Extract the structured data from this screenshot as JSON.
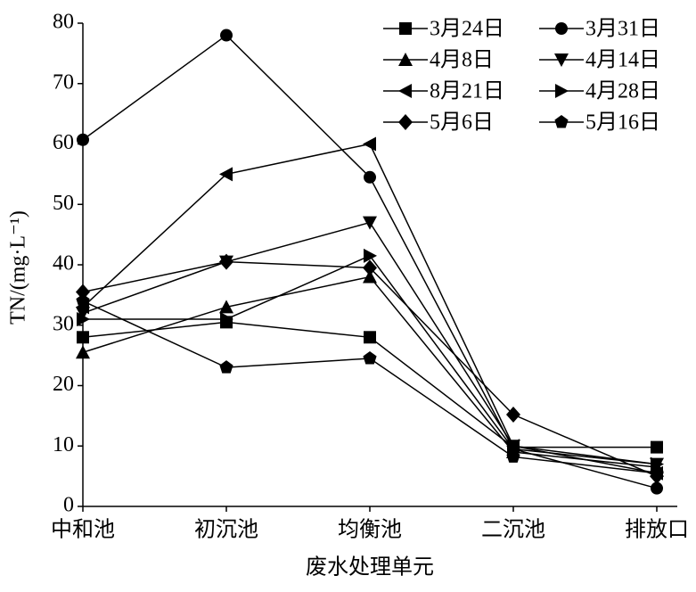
{
  "chart_data": {
    "type": "line",
    "x_label": "废水处理单元",
    "y_label": "TN/(mg·L⁻¹)",
    "categories": [
      "中和池",
      "初沉池",
      "均衡池",
      "二沉池",
      "排放口"
    ],
    "ylim": [
      0,
      80
    ],
    "yticks": [
      0,
      10,
      20,
      30,
      40,
      50,
      60,
      70,
      80
    ],
    "series": [
      {
        "name": "3月24日",
        "color": "#000000",
        "marker": "square",
        "values": [
          28,
          30.5,
          28,
          9.8,
          9.8
        ]
      },
      {
        "name": "3月31日",
        "color": "#000000",
        "marker": "circle",
        "values": [
          60.7,
          78,
          54.5,
          9.5,
          3
        ]
      },
      {
        "name": "4月8日",
        "color": "#000000",
        "marker": "triangle-up",
        "values": [
          25.5,
          33,
          38,
          9,
          6.5
        ]
      },
      {
        "name": "4月14日",
        "color": "#000000",
        "marker": "triangle-down",
        "values": [
          32,
          40.5,
          47,
          10,
          7
        ]
      },
      {
        "name": "8月21日",
        "color": "#000000",
        "marker": "triangle-left",
        "values": [
          33,
          55,
          60,
          10,
          5.5
        ]
      },
      {
        "name": "4月28日",
        "color": "#000000",
        "marker": "triangle-right",
        "values": [
          31,
          31,
          41.5,
          9.5,
          7
        ]
      },
      {
        "name": "5月6日",
        "color": "#000000",
        "marker": "diamond",
        "values": [
          35.5,
          40.5,
          39.5,
          15.2,
          5
        ]
      },
      {
        "name": "5月16日",
        "color": "#000000",
        "marker": "pentagon",
        "values": [
          34,
          23,
          24.5,
          8.2,
          5.5
        ]
      }
    ]
  }
}
